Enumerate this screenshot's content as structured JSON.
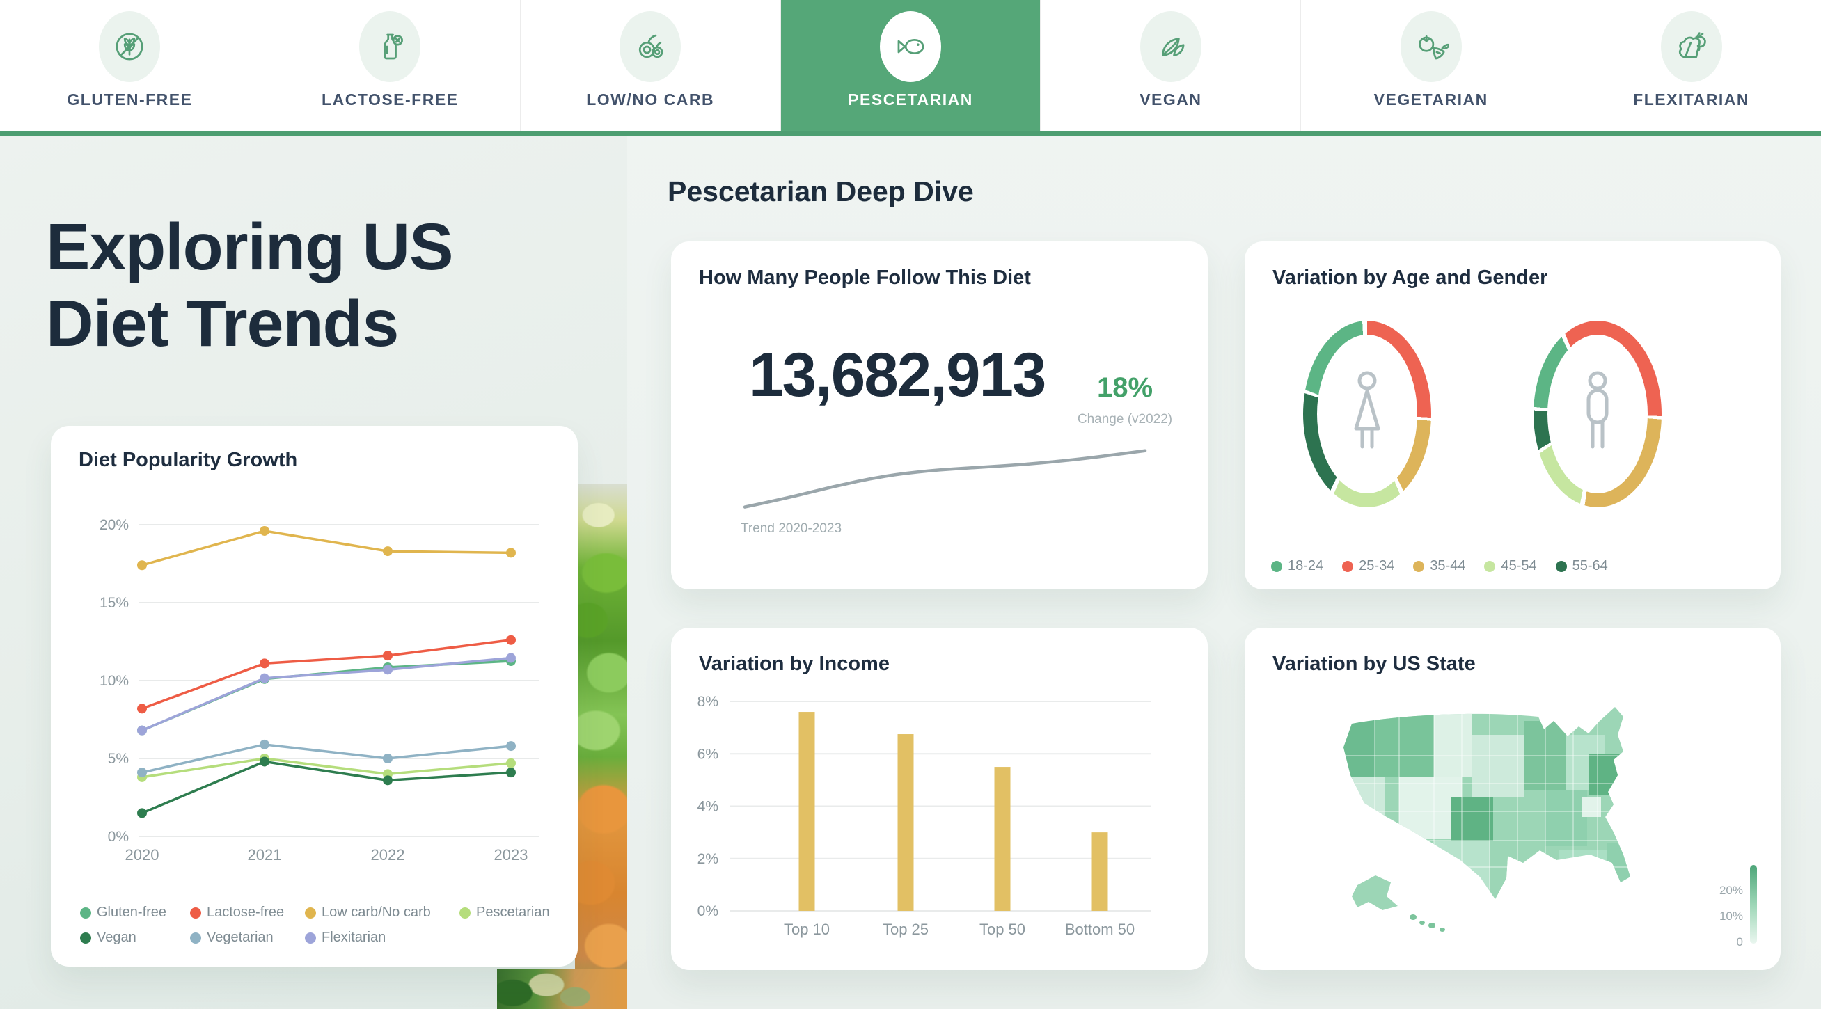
{
  "palette": {
    "accent_green": "#55a778",
    "underline_green": "#4d9e71",
    "navy": "#1d2c3c",
    "muted_text": "#8b979d",
    "change_green": "#43a169"
  },
  "nav": {
    "tabs": [
      {
        "label": "GLUTEN-FREE",
        "icon": "wheat-crossed-icon",
        "active": false
      },
      {
        "label": "LACTOSE-FREE",
        "icon": "milk-bottle-crossed-icon",
        "active": false
      },
      {
        "label": "LOW/NO CARB",
        "icon": "berries-icon",
        "active": false
      },
      {
        "label": "PESCETARIAN",
        "icon": "fish-icon",
        "active": true
      },
      {
        "label": "VEGAN",
        "icon": "leaves-icon",
        "active": false
      },
      {
        "label": "VEGETARIAN",
        "icon": "tomato-carrot-icon",
        "active": false
      },
      {
        "label": "FLEXITARIAN",
        "icon": "leaf-shrimp-icon",
        "active": false
      }
    ]
  },
  "hero": {
    "title": "Exploring US Diet Trends"
  },
  "deep_dive": {
    "heading": "Pescetarian Deep Dive",
    "followers": {
      "title": "How Many People Follow This Diet",
      "value": "13,682,913",
      "change": "18%",
      "change_caption": "Change (v2022)",
      "trend_caption": "Trend 2020-2023"
    }
  },
  "chart_data": [
    {
      "id": "diet_popularity",
      "type": "line",
      "title": "Diet Popularity Growth",
      "x": [
        "2020",
        "2021",
        "2022",
        "2023"
      ],
      "ylim": [
        0,
        20
      ],
      "yticks": [
        0,
        5,
        10,
        15,
        20
      ],
      "ytick_suffix": "%",
      "grid": true,
      "legend_position": "bottom",
      "series": [
        {
          "name": "Gluten-free",
          "color": "#5cb585",
          "values": [
            6.8,
            10.1,
            10.85,
            11.25
          ]
        },
        {
          "name": "Lactose-free",
          "color": "#ee5c45",
          "values": [
            8.2,
            11.1,
            11.6,
            12.6
          ]
        },
        {
          "name": "Low carb/No carb",
          "color": "#e0b54e",
          "values": [
            17.4,
            19.6,
            18.3,
            18.2
          ]
        },
        {
          "name": "Pescetarian",
          "color": "#b5dd7c",
          "values": [
            3.8,
            5.0,
            4.0,
            4.7
          ]
        },
        {
          "name": "Vegan",
          "color": "#2e7d4f",
          "values": [
            1.5,
            4.8,
            3.6,
            4.1
          ]
        },
        {
          "name": "Vegetarian",
          "color": "#8fb2c4",
          "values": [
            4.1,
            5.9,
            5.0,
            5.8
          ]
        },
        {
          "name": "Flexitarian",
          "color": "#9da4d9",
          "values": [
            6.8,
            10.15,
            10.7,
            11.45
          ]
        }
      ]
    },
    {
      "id": "followers_trend",
      "type": "line",
      "subtype": "sparkline",
      "color": "#9aa6ab",
      "points_rel": [
        [
          0,
          0.04
        ],
        [
          0.1,
          0.18
        ],
        [
          0.22,
          0.38
        ],
        [
          0.34,
          0.55
        ],
        [
          0.46,
          0.65
        ],
        [
          0.58,
          0.7
        ],
        [
          0.7,
          0.75
        ],
        [
          0.84,
          0.84
        ],
        [
          1,
          0.98
        ]
      ]
    },
    {
      "id": "age_gender",
      "type": "donut-pair",
      "title": "Variation by Age and Gender",
      "legend": [
        {
          "label": "18-24",
          "color": "#5cb585"
        },
        {
          "label": "25-34",
          "color": "#ee6352"
        },
        {
          "label": "35-44",
          "color": "#ddb45a"
        },
        {
          "label": "45-54",
          "color": "#c6e6a0"
        },
        {
          "label": "55-64",
          "color": "#2d7350"
        }
      ],
      "female": {
        "icon": "female-icon",
        "values": [
          19,
          27,
          17,
          13,
          24
        ],
        "start_angle": 0
      },
      "male": {
        "icon": "male-icon",
        "values": [
          17,
          33,
          27,
          13,
          10
        ],
        "start_angle": -22
      },
      "values_note": "percent share per age group, aligned with legend labels, drawn clockwise from top starting at 25-34"
    },
    {
      "id": "income",
      "type": "bar",
      "title": "Variation by Income",
      "categories": [
        "Top 10",
        "Top 25",
        "Top 50",
        "Bottom 50"
      ],
      "values": [
        7.6,
        6.75,
        5.5,
        3.0
      ],
      "bar_color": "#e2c064",
      "ylim": [
        0,
        8
      ],
      "yticks": [
        0,
        2,
        4,
        6,
        8
      ],
      "ytick_suffix": "%"
    },
    {
      "id": "us_state",
      "type": "choropleth",
      "title": "Variation by US State",
      "scale": {
        "labels": [
          "20%",
          "10%",
          "0"
        ],
        "min_color": "#eaf6ef",
        "max_color": "#4da578"
      }
    }
  ]
}
